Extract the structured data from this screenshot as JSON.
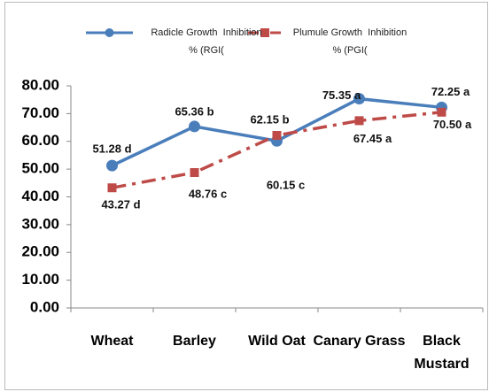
{
  "chart_data": {
    "type": "line",
    "categories": [
      "Wheat",
      "Barley",
      "Wild Oat",
      "Canary Grass",
      "Black\nMustard"
    ],
    "series": [
      {
        "name": "Radicle Growth  Inhibition\n% (RGI(",
        "color": "#4a7ebb",
        "values": [
          51.28,
          65.36,
          60.15,
          75.35,
          72.25
        ],
        "value_labels": [
          "51.28 d",
          "65.36  b",
          "60.15 c",
          "75.35 a",
          "72.25 a"
        ]
      },
      {
        "name": "Plumule Growth  Inhibition\n% (PGI(",
        "color": "#be4b48",
        "values": [
          43.27,
          48.76,
          62.15,
          67.45,
          70.5
        ],
        "value_labels": [
          "43.27 d",
          "48.76  c",
          "62.15 b",
          "67.45 a",
          "70.50 a"
        ]
      }
    ],
    "ylim": [
      0,
      80
    ],
    "yticks": [
      {
        "value": 0,
        "label": "0.00"
      },
      {
        "value": 10,
        "label": "10.00"
      },
      {
        "value": 20,
        "label": "20.00"
      },
      {
        "value": 30,
        "label": "30.00"
      },
      {
        "value": 40,
        "label": "40.00"
      },
      {
        "value": 50,
        "label": "50.00"
      },
      {
        "value": 60,
        "label": "60.00"
      },
      {
        "value": 70,
        "label": "70.00"
      },
      {
        "value": 80,
        "label": "80.00"
      }
    ]
  }
}
